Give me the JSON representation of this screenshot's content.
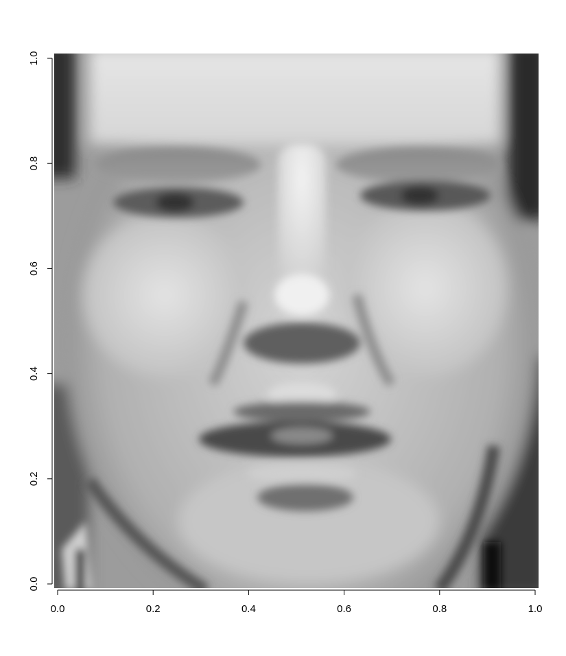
{
  "chart_data": {
    "type": "heatmap",
    "title": "",
    "xlabel": "",
    "ylabel": "",
    "xlim": [
      0.0,
      1.0
    ],
    "ylim": [
      0.0,
      1.0
    ],
    "colormap": "grayscale",
    "grid": false,
    "legend": false,
    "x_ticks": [
      0.0,
      0.2,
      0.4,
      0.6,
      0.8,
      1.0
    ],
    "y_ticks": [
      0.0,
      0.2,
      0.4,
      0.6,
      0.8,
      1.0
    ],
    "x_tick_labels": [
      "0.0",
      "0.2",
      "0.4",
      "0.6",
      "0.8",
      "1.0"
    ],
    "y_tick_labels": [
      "0.0",
      "0.2",
      "0.4",
      "0.6",
      "0.8",
      "1.0"
    ],
    "image_subject": "face",
    "grid_resolution": [
      64,
      64
    ],
    "colors": {
      "axis": "#000000",
      "background": "#ffffff"
    }
  }
}
